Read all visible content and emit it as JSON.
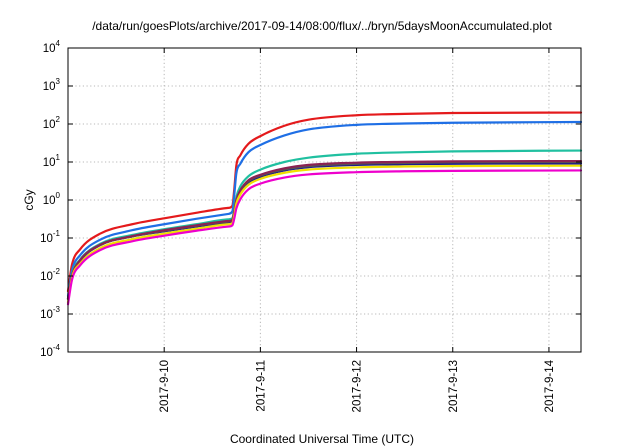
{
  "chart_data": {
    "type": "line",
    "title": "/data/run/goesPlots/archive/2017-09-14/08:00/flux/../bryn/5daysMoonAccumulated.plot",
    "xlabel": "Coordinated Universal Time (UTC)",
    "ylabel": "cGy",
    "x_scale": "time",
    "y_scale": "log",
    "xlim": [
      "2017-09-09T00:00",
      "2017-09-14T08:00"
    ],
    "ylim": [
      0.0001,
      10000
    ],
    "grid": true,
    "x_ticks": [
      {
        "x": "2017-09-10T00:00",
        "label": "2017-9-10"
      },
      {
        "x": "2017-09-11T00:00",
        "label": "2017-9-11"
      },
      {
        "x": "2017-09-12T00:00",
        "label": "2017-9-12"
      },
      {
        "x": "2017-09-13T00:00",
        "label": "2017-9-13"
      },
      {
        "x": "2017-09-14T00:00",
        "label": "2017-9-14"
      }
    ],
    "y_ticks": [
      {
        "value": 0.0001,
        "base": "10",
        "exp": "-4"
      },
      {
        "value": 0.001,
        "base": "10",
        "exp": "-3"
      },
      {
        "value": 0.01,
        "base": "10",
        "exp": "-2"
      },
      {
        "value": 0.1,
        "base": "10",
        "exp": "-1"
      },
      {
        "value": 1,
        "base": "10",
        "exp": "0"
      },
      {
        "value": 10,
        "base": "10",
        "exp": "1"
      },
      {
        "value": 100,
        "base": "10",
        "exp": "2"
      },
      {
        "value": 1000,
        "base": "10",
        "exp": "3"
      },
      {
        "value": 10000,
        "base": "10",
        "exp": "4"
      }
    ],
    "x": [
      "2017-09-09T00:00",
      "2017-09-09T01:00",
      "2017-09-09T03:00",
      "2017-09-09T08:00",
      "2017-09-09T16:00",
      "2017-09-10T00:00",
      "2017-09-10T08:00",
      "2017-09-10T16:00",
      "2017-09-10T17:00",
      "2017-09-10T17:30",
      "2017-09-10T18:00",
      "2017-09-10T19:00",
      "2017-09-10T21:00",
      "2017-09-11T00:00",
      "2017-09-11T06:00",
      "2017-09-11T12:00",
      "2017-09-12T00:00",
      "2017-09-12T12:00",
      "2017-09-13T00:00",
      "2017-09-14T08:00"
    ],
    "series": [
      {
        "color": "#e41a1c",
        "values": [
          0.004,
          0.02,
          0.05,
          0.13,
          0.23,
          0.33,
          0.46,
          0.62,
          0.7,
          2.0,
          8.0,
          15,
          30,
          48,
          90,
          130,
          170,
          185,
          195,
          200
        ]
      },
      {
        "color": "#1f6fe5",
        "values": [
          0.003,
          0.014,
          0.035,
          0.09,
          0.16,
          0.23,
          0.32,
          0.43,
          0.5,
          1.4,
          5.0,
          9.0,
          18,
          28,
          50,
          72,
          95,
          103,
          108,
          113
        ]
      },
      {
        "color": "#20c0a0",
        "values": [
          0.0025,
          0.011,
          0.027,
          0.07,
          0.12,
          0.17,
          0.23,
          0.31,
          0.33,
          0.6,
          1.2,
          2.3,
          4.2,
          6.3,
          10,
          13,
          16.5,
          18,
          19,
          20
        ]
      },
      {
        "color": "#1b1b8f",
        "values": [
          0.0025,
          0.01,
          0.025,
          0.065,
          0.11,
          0.15,
          0.2,
          0.26,
          0.28,
          0.45,
          0.9,
          1.6,
          2.9,
          4.1,
          6.0,
          7.3,
          8.4,
          8.8,
          9.0,
          9.2
        ]
      },
      {
        "color": "#555555",
        "values": [
          0.0025,
          0.01,
          0.025,
          0.065,
          0.11,
          0.155,
          0.21,
          0.27,
          0.29,
          0.48,
          0.95,
          1.7,
          3.1,
          4.4,
          6.4,
          7.8,
          9.0,
          9.5,
          9.8,
          10
        ]
      },
      {
        "color": "#8b2252",
        "values": [
          0.0025,
          0.01,
          0.026,
          0.066,
          0.112,
          0.16,
          0.215,
          0.28,
          0.3,
          0.5,
          1.0,
          1.8,
          3.3,
          4.6,
          6.8,
          8.4,
          9.6,
          10.1,
          10.4,
          10.6
        ]
      },
      {
        "color": "#f0e000",
        "values": [
          0.002,
          0.009,
          0.021,
          0.054,
          0.093,
          0.13,
          0.175,
          0.23,
          0.245,
          0.4,
          0.8,
          1.4,
          2.5,
          3.6,
          5.2,
          6.3,
          7.2,
          7.6,
          7.8,
          8.0
        ]
      },
      {
        "color": "#ee00cc",
        "values": [
          0.0018,
          0.008,
          0.019,
          0.048,
          0.082,
          0.115,
          0.155,
          0.2,
          0.215,
          0.33,
          0.6,
          1.05,
          1.9,
          2.7,
          3.9,
          4.7,
          5.4,
          5.7,
          5.85,
          6.0
        ]
      }
    ]
  }
}
